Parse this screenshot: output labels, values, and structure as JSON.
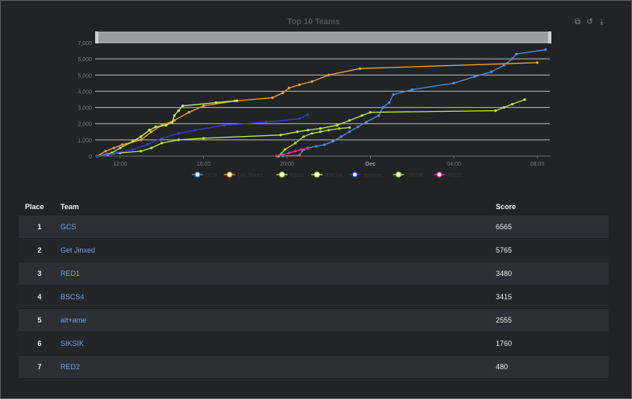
{
  "chart_data": {
    "type": "line",
    "title": "Top 10 Teams",
    "x_tick_labels": [
      "12:00",
      "16:00",
      "20:00",
      "Dec",
      "04:00",
      "08:00"
    ],
    "y_tick_labels": [
      "0",
      "1,000",
      "2,000",
      "3,000",
      "4,000",
      "5,000",
      "6,000",
      "7,000"
    ],
    "ylim": [
      0,
      7000
    ],
    "xlim": [
      10.8,
      32.6
    ],
    "x_unit": "hours since 00:00 of the first day",
    "grid": "horizontal",
    "legend_position": "bottom",
    "series": [
      {
        "name": "GCS",
        "color": "#4a8fe0",
        "points": [
          [
            19.8,
            0
          ],
          [
            20.6,
            50
          ],
          [
            20.8,
            400
          ],
          [
            21.0,
            500
          ],
          [
            21.4,
            600
          ],
          [
            21.8,
            700
          ],
          [
            22.2,
            900
          ],
          [
            22.6,
            1200
          ],
          [
            23.0,
            1500
          ],
          [
            23.4,
            1800
          ],
          [
            23.8,
            2100
          ],
          [
            24.4,
            2500
          ],
          [
            24.6,
            3000
          ],
          [
            24.9,
            3300
          ],
          [
            25.1,
            3800
          ],
          [
            26.0,
            4100
          ],
          [
            28.0,
            4500
          ],
          [
            29.0,
            4900
          ],
          [
            29.8,
            5200
          ],
          [
            30.4,
            5600
          ],
          [
            30.8,
            6000
          ],
          [
            31.0,
            6300
          ],
          [
            32.4,
            6565
          ]
        ]
      },
      {
        "name": "Get Jinxed",
        "color": "#f0a030",
        "points": [
          [
            10.9,
            0
          ],
          [
            11.3,
            300
          ],
          [
            11.7,
            500
          ],
          [
            12.1,
            700
          ],
          [
            13.0,
            1000
          ],
          [
            13.5,
            1500
          ],
          [
            14.0,
            1900
          ],
          [
            14.6,
            2200
          ],
          [
            15.3,
            2700
          ],
          [
            16.0,
            3100
          ],
          [
            17.5,
            3400
          ],
          [
            19.3,
            3600
          ],
          [
            19.8,
            3900
          ],
          [
            20.1,
            4200
          ],
          [
            20.6,
            4400
          ],
          [
            21.2,
            4600
          ],
          [
            22.0,
            5000
          ],
          [
            23.5,
            5400
          ],
          [
            32.0,
            5765
          ]
        ]
      },
      {
        "name": "RED1",
        "color": "#b5e84a",
        "points": [
          [
            10.9,
            0
          ],
          [
            11.4,
            100
          ],
          [
            12.0,
            200
          ],
          [
            13.0,
            300
          ],
          [
            13.5,
            500
          ],
          [
            14.0,
            800
          ],
          [
            14.8,
            1000
          ],
          [
            16.0,
            1100
          ],
          [
            19.7,
            1300
          ],
          [
            20.5,
            1500
          ],
          [
            21.0,
            1600
          ],
          [
            21.6,
            1700
          ],
          [
            22.4,
            1900
          ],
          [
            23.0,
            2200
          ],
          [
            23.6,
            2500
          ],
          [
            24.0,
            2700
          ],
          [
            30.0,
            2800
          ],
          [
            30.4,
            3000
          ],
          [
            30.8,
            3200
          ],
          [
            31.4,
            3480
          ]
        ]
      },
      {
        "name": "BSCS4",
        "color": "#c4f24a",
        "points": [
          [
            10.9,
            0
          ],
          [
            11.6,
            200
          ],
          [
            12.0,
            500
          ],
          [
            12.6,
            900
          ],
          [
            13.0,
            1200
          ],
          [
            13.4,
            1600
          ],
          [
            13.7,
            1800
          ],
          [
            14.2,
            1900
          ],
          [
            14.5,
            2100
          ],
          [
            14.6,
            2500
          ],
          [
            14.8,
            2800
          ],
          [
            15.0,
            3100
          ],
          [
            16.6,
            3300
          ],
          [
            17.6,
            3415
          ]
        ]
      },
      {
        "name": "alt+ame",
        "color": "#2e3fd8",
        "points": [
          [
            10.9,
            0
          ],
          [
            11.8,
            200
          ],
          [
            12.6,
            400
          ],
          [
            13.3,
            700
          ],
          [
            14.0,
            1100
          ],
          [
            14.8,
            1400
          ],
          [
            15.6,
            1600
          ],
          [
            17.0,
            1900
          ],
          [
            19.0,
            2100
          ],
          [
            20.6,
            2300
          ],
          [
            21.0,
            2555
          ]
        ]
      },
      {
        "name": "SIKSIK",
        "color": "#a4e040",
        "points": [
          [
            19.6,
            0
          ],
          [
            19.9,
            400
          ],
          [
            20.4,
            800
          ],
          [
            20.8,
            1200
          ],
          [
            21.2,
            1400
          ],
          [
            21.6,
            1500
          ],
          [
            22.0,
            1600
          ],
          [
            22.5,
            1700
          ],
          [
            23.0,
            1760
          ]
        ]
      },
      {
        "name": "RED2",
        "color": "#e0309a",
        "points": [
          [
            19.5,
            0
          ],
          [
            19.8,
            100
          ],
          [
            20.1,
            200
          ],
          [
            20.4,
            300
          ],
          [
            20.7,
            400
          ],
          [
            21.0,
            480
          ]
        ]
      }
    ]
  },
  "table": {
    "headers": {
      "place": "Place",
      "team": "Team",
      "score": "Score"
    },
    "rows": [
      {
        "place": "1",
        "team": "GCS",
        "score": "6565"
      },
      {
        "place": "2",
        "team": "Get Jinxed",
        "score": "5765"
      },
      {
        "place": "3",
        "team": "RED1",
        "score": "3480"
      },
      {
        "place": "4",
        "team": "BSCS4",
        "score": "3415"
      },
      {
        "place": "5",
        "team": "alt+ame",
        "score": "2555"
      },
      {
        "place": "6",
        "team": "SIKSIK",
        "score": "1760"
      },
      {
        "place": "7",
        "team": "RED2",
        "score": "480"
      }
    ]
  },
  "toolbox": {
    "zoom_icon": "zoom-icon",
    "restore_icon": "restore-icon",
    "download_icon": "download-icon"
  }
}
